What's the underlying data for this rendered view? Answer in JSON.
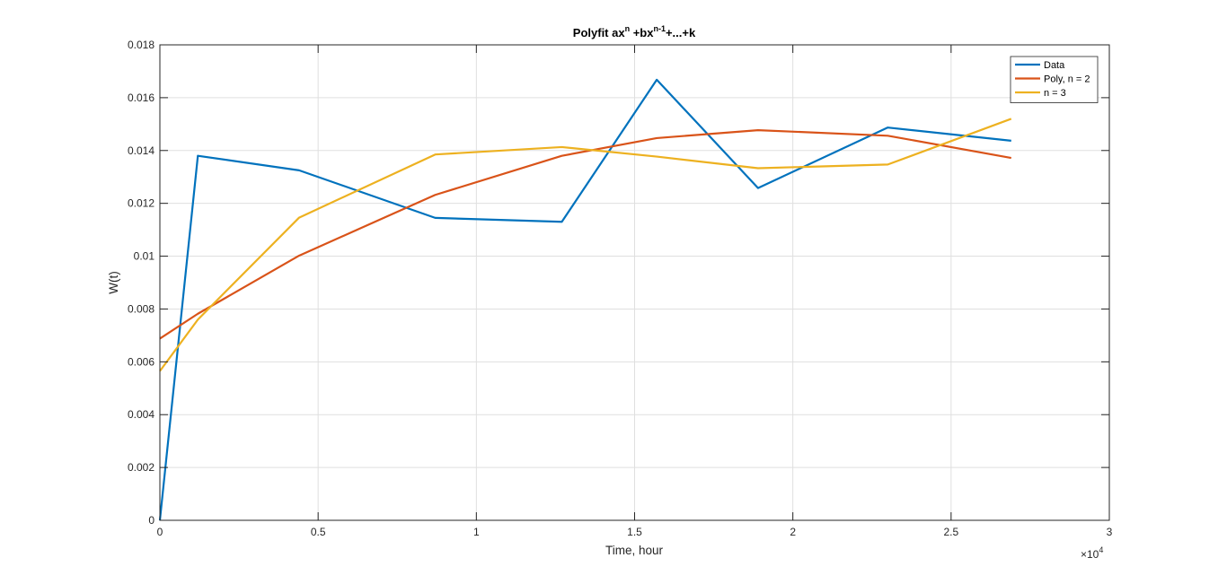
{
  "chart_data": {
    "type": "line",
    "title": {
      "base": "Polyfit ax",
      "sup1": "n",
      "mid": " +bx",
      "sup2": "n-1",
      "end": "+...+k"
    },
    "xlabel": "Time, hour",
    "ylabel": "W(t)",
    "xlim": [
      0,
      30000
    ],
    "ylim": [
      0,
      0.018
    ],
    "x_tick_values": [
      0,
      5000,
      10000,
      15000,
      20000,
      25000,
      30000
    ],
    "x_tick_labels": [
      "0",
      "0.5",
      "1",
      "1.5",
      "2",
      "2.5",
      "3"
    ],
    "y_tick_values": [
      0,
      0.002,
      0.004,
      0.006,
      0.008,
      0.01,
      0.012,
      0.014,
      0.016,
      0.018
    ],
    "y_tick_labels": [
      "0",
      "0.002",
      "0.004",
      "0.006",
      "0.008",
      "0.01",
      "0.012",
      "0.014",
      "0.016",
      "0.018"
    ],
    "x_exponent": {
      "base": "×10",
      "exp": "4"
    },
    "grid": true,
    "legend_position": "top-right",
    "x": [
      0,
      1200,
      4400,
      8700,
      12700,
      15700,
      18900,
      23000,
      26900
    ],
    "series": [
      {
        "name": "Data",
        "color": "#0072BD",
        "values": [
          0,
          0.0138,
          0.01325,
          0.01145,
          0.0113,
          0.01668,
          0.01258,
          0.01487,
          0.01437
        ]
      },
      {
        "name": "Poly, n = 2",
        "color": "#D95319",
        "values": [
          0.00688,
          0.00782,
          0.01002,
          0.01232,
          0.0138,
          0.01447,
          0.01477,
          0.01456,
          0.01372
        ]
      },
      {
        "name": "n = 3",
        "color": "#EDB120",
        "values": [
          0.00565,
          0.0076,
          0.01146,
          0.01385,
          0.01413,
          0.01377,
          0.01333,
          0.01347,
          0.0152
        ]
      }
    ]
  }
}
